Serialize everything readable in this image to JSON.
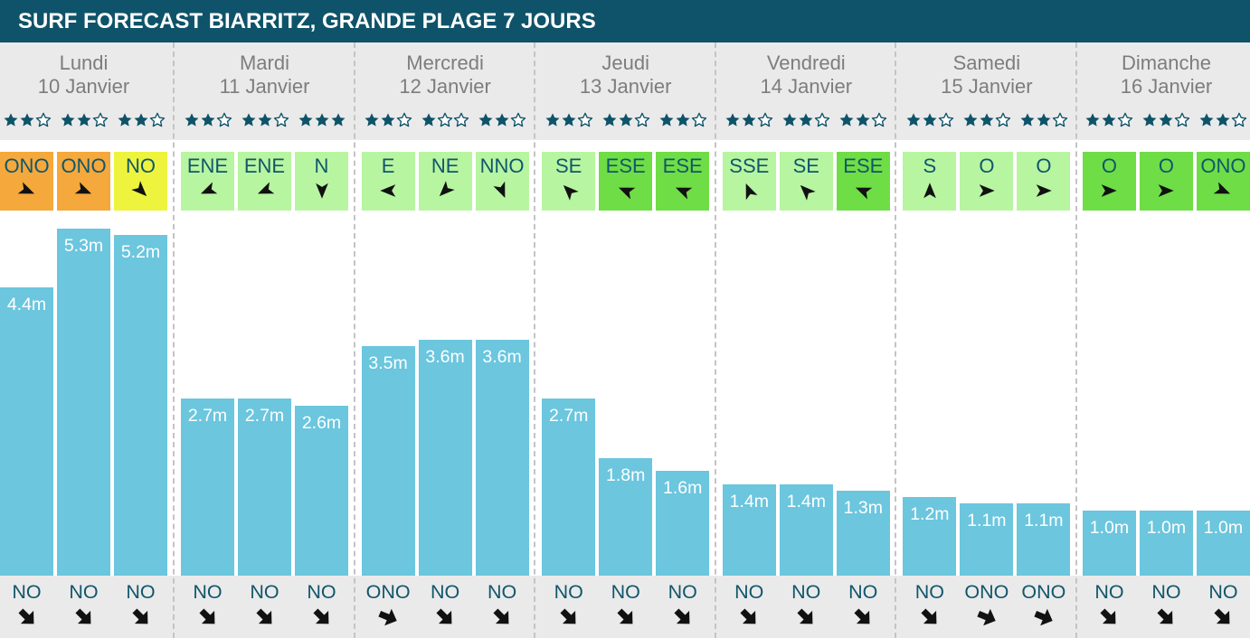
{
  "header": {
    "title": "SURF FORECAST BIARRITZ, GRANDE PLAGE 7 JOURS"
  },
  "colors": {
    "header_bg": "#0e5369",
    "header_text": "#ffffff",
    "panel_bg": "#eaeaea",
    "day_text": "#7d7d7d",
    "teal_text": "#11566b",
    "star": "#0e5369",
    "bar": "#6bc6de",
    "bar_label": "#ffffff",
    "arrow": "#111111",
    "separator": "#c4c4c4"
  },
  "chart_data": {
    "type": "bar",
    "rating_max": 3,
    "days": [
      {
        "name": "Lundi",
        "date": "10 Janvier",
        "slots": [
          {
            "rating": 2,
            "wind": "ONO",
            "wind_color": "#f5a83b",
            "wave_height": 4.4,
            "wave_label": "4.4m",
            "swell": "NO"
          },
          {
            "rating": 2,
            "wind": "ONO",
            "wind_color": "#f5a83b",
            "wave_height": 5.3,
            "wave_label": "5.3m",
            "swell": "NO"
          },
          {
            "rating": 2,
            "wind": "NO",
            "wind_color": "#eef33e",
            "wave_height": 5.2,
            "wave_label": "5.2m",
            "swell": "NO"
          }
        ]
      },
      {
        "name": "Mardi",
        "date": "11 Janvier",
        "slots": [
          {
            "rating": 2,
            "wind": "ENE",
            "wind_color": "#b7f5a1",
            "wave_height": 2.7,
            "wave_label": "2.7m",
            "swell": "NO"
          },
          {
            "rating": 2,
            "wind": "ENE",
            "wind_color": "#b7f5a1",
            "wave_height": 2.7,
            "wave_label": "2.7m",
            "swell": "NO"
          },
          {
            "rating": 3,
            "wind": "N",
            "wind_color": "#b7f5a1",
            "wave_height": 2.6,
            "wave_label": "2.6m",
            "swell": "NO"
          }
        ]
      },
      {
        "name": "Mercredi",
        "date": "12 Janvier",
        "slots": [
          {
            "rating": 2,
            "wind": "E",
            "wind_color": "#b7f5a1",
            "wave_height": 3.5,
            "wave_label": "3.5m",
            "swell": "ONO"
          },
          {
            "rating": 1,
            "wind": "NE",
            "wind_color": "#b7f5a1",
            "wave_height": 3.6,
            "wave_label": "3.6m",
            "swell": "NO"
          },
          {
            "rating": 2,
            "wind": "NNO",
            "wind_color": "#b7f5a1",
            "wave_height": 3.6,
            "wave_label": "3.6m",
            "swell": "NO"
          }
        ]
      },
      {
        "name": "Jeudi",
        "date": "13 Janvier",
        "slots": [
          {
            "rating": 2,
            "wind": "SE",
            "wind_color": "#b7f5a1",
            "wave_height": 2.7,
            "wave_label": "2.7m",
            "swell": "NO"
          },
          {
            "rating": 2,
            "wind": "ESE",
            "wind_color": "#6fdd46",
            "wave_height": 1.8,
            "wave_label": "1.8m",
            "swell": "NO"
          },
          {
            "rating": 2,
            "wind": "ESE",
            "wind_color": "#6fdd46",
            "wave_height": 1.6,
            "wave_label": "1.6m",
            "swell": "NO"
          }
        ]
      },
      {
        "name": "Vendredi",
        "date": "14 Janvier",
        "slots": [
          {
            "rating": 2,
            "wind": "SSE",
            "wind_color": "#b7f5a1",
            "wave_height": 1.4,
            "wave_label": "1.4m",
            "swell": "NO"
          },
          {
            "rating": 2,
            "wind": "SE",
            "wind_color": "#b7f5a1",
            "wave_height": 1.4,
            "wave_label": "1.4m",
            "swell": "NO"
          },
          {
            "rating": 2,
            "wind": "ESE",
            "wind_color": "#6fdd46",
            "wave_height": 1.3,
            "wave_label": "1.3m",
            "swell": "NO"
          }
        ]
      },
      {
        "name": "Samedi",
        "date": "15 Janvier",
        "slots": [
          {
            "rating": 2,
            "wind": "S",
            "wind_color": "#b7f5a1",
            "wave_height": 1.2,
            "wave_label": "1.2m",
            "swell": "NO"
          },
          {
            "rating": 2,
            "wind": "O",
            "wind_color": "#b7f5a1",
            "wave_height": 1.1,
            "wave_label": "1.1m",
            "swell": "ONO"
          },
          {
            "rating": 2,
            "wind": "O",
            "wind_color": "#b7f5a1",
            "wave_height": 1.1,
            "wave_label": "1.1m",
            "swell": "ONO"
          }
        ]
      },
      {
        "name": "Dimanche",
        "date": "16 Janvier",
        "slots": [
          {
            "rating": 2,
            "wind": "O",
            "wind_color": "#6fdd46",
            "wave_height": 1.0,
            "wave_label": "1.0m",
            "swell": "NO"
          },
          {
            "rating": 2,
            "wind": "O",
            "wind_color": "#6fdd46",
            "wave_height": 1.0,
            "wave_label": "1.0m",
            "swell": "NO"
          },
          {
            "rating": 2,
            "wind": "ONO",
            "wind_color": "#6fdd46",
            "wave_height": 1.0,
            "wave_label": "1.0m",
            "swell": "NO"
          }
        ]
      }
    ]
  }
}
